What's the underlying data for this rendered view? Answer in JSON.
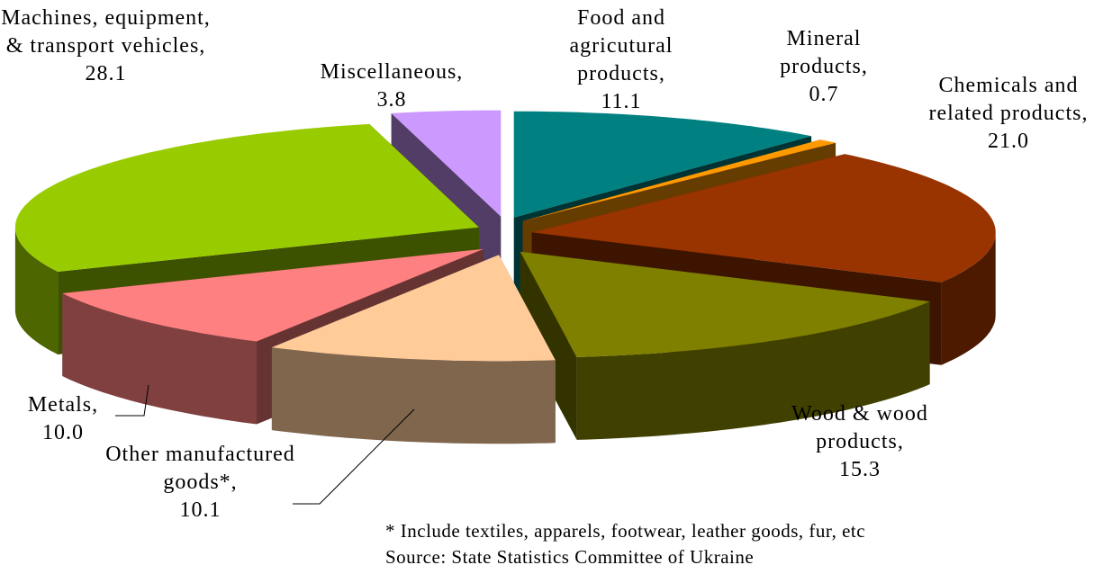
{
  "chart_data": {
    "type": "pie3d",
    "categories": [
      "Food and agricutural products,",
      "Mineral products,",
      "Chemicals and related products,",
      "Wood & wood products,",
      "Other manufactured goods*,",
      "Metals,",
      "Machines, equipment, & transport vehicles,",
      "Miscellaneous,"
    ],
    "values": [
      11.1,
      0.7,
      21.0,
      15.3,
      10.1,
      10.0,
      28.1,
      3.8
    ],
    "value_labels": [
      "11.1",
      "0.7",
      "21.0",
      "15.3",
      "10.1",
      "10.0",
      "28.1",
      "3.8"
    ],
    "colors": [
      "#008080",
      "#ff9900",
      "#993300",
      "#808000",
      "#ffcc99",
      "#ff8080",
      "#99cc00",
      "#cc99ff"
    ],
    "notes": [
      "* Include textiles, apparels, footwear, leather goods, fur, etc",
      "Source: State Statistics Committee of Ukraine"
    ]
  }
}
